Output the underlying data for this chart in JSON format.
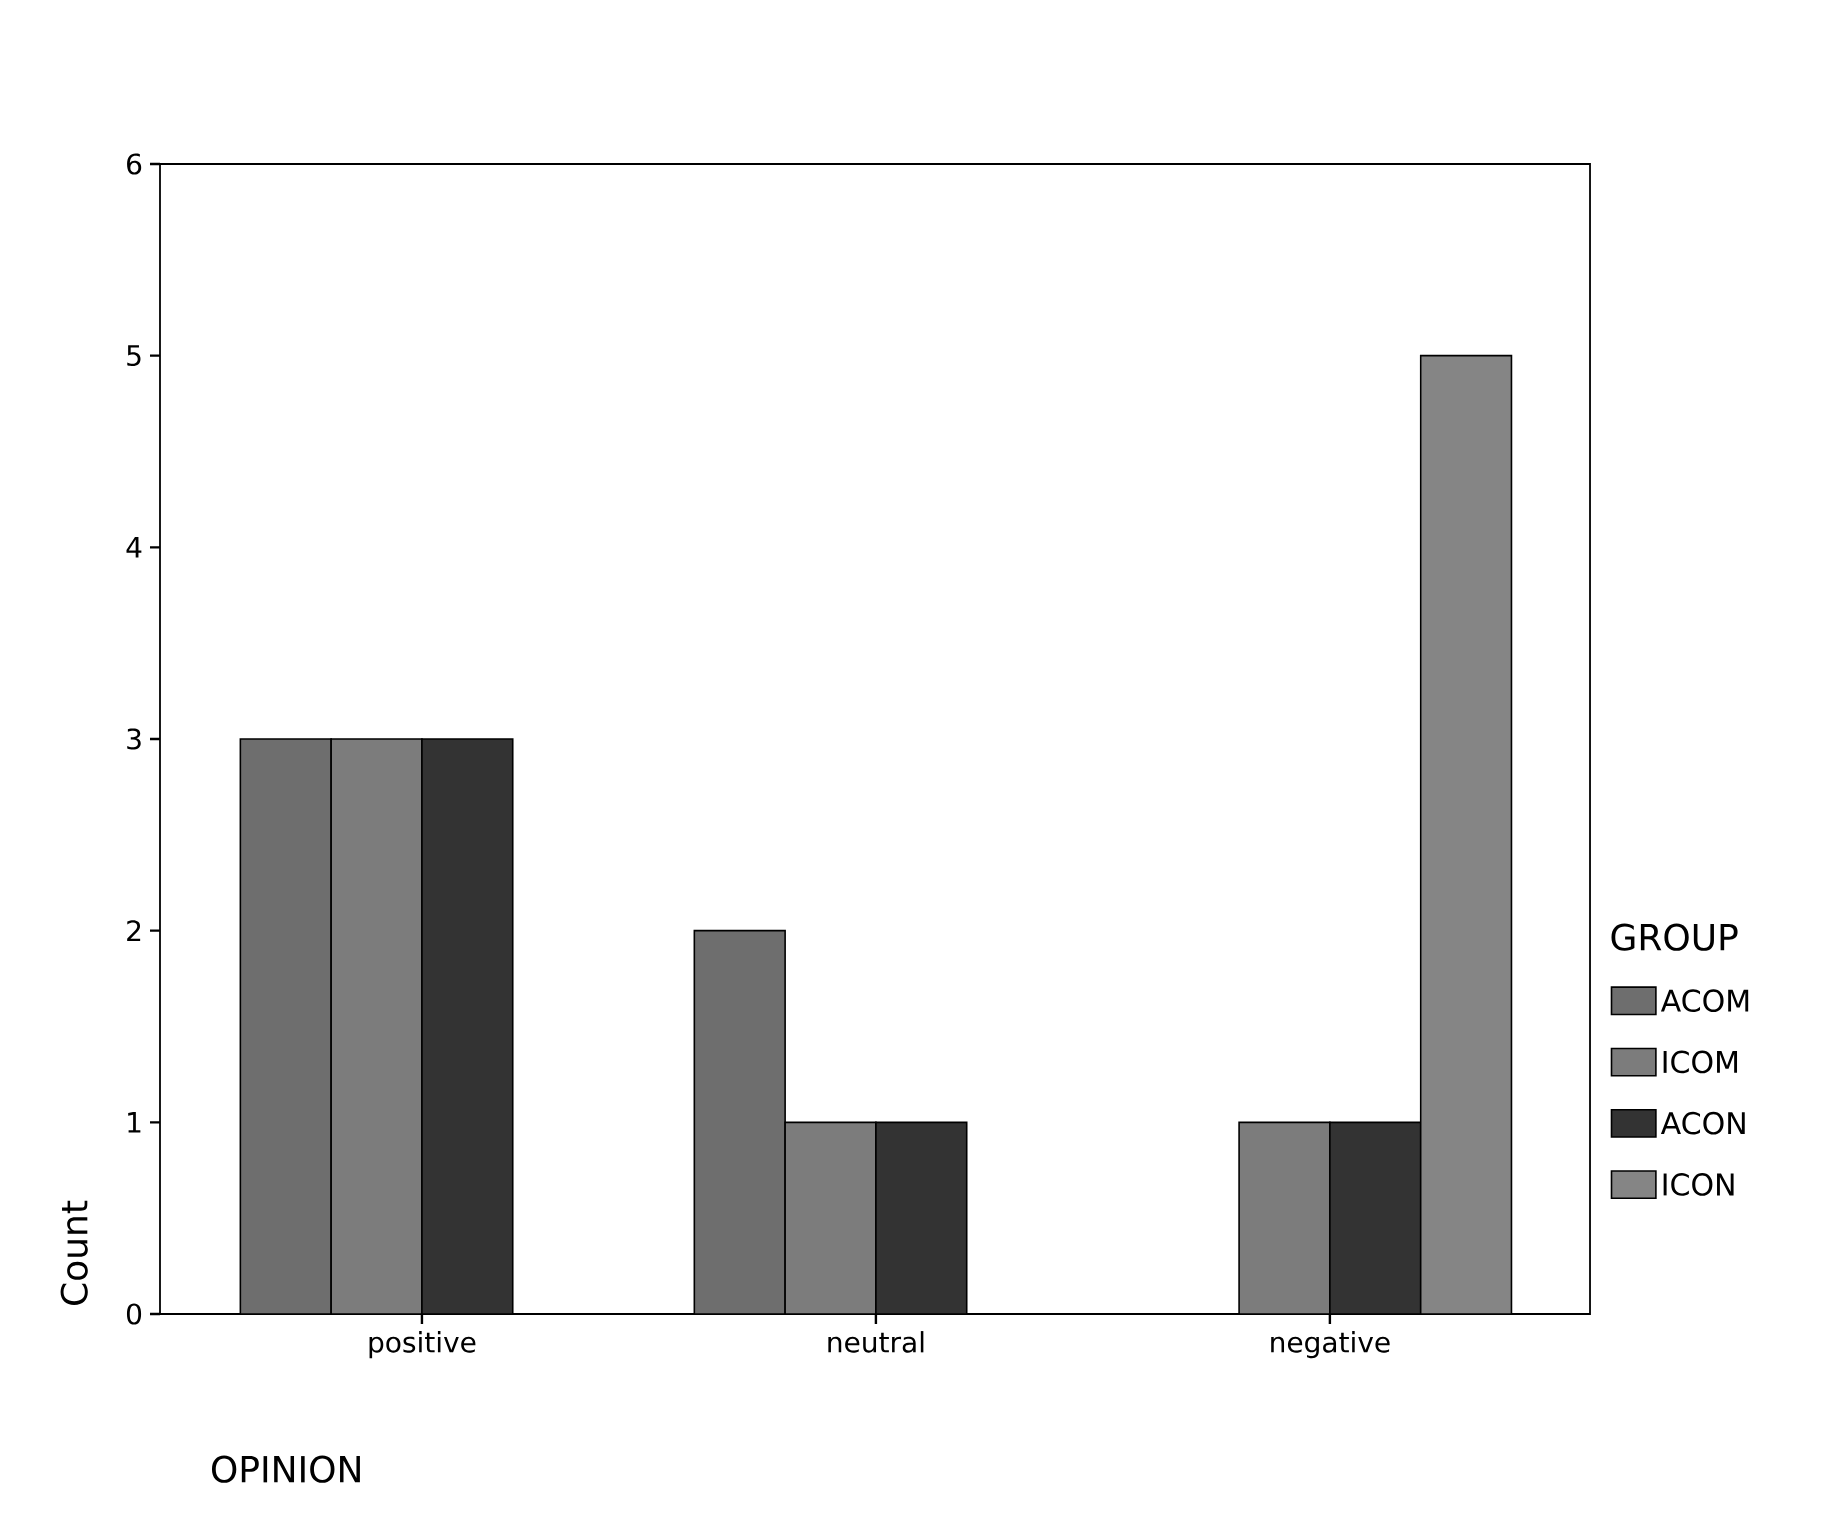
{
  "chart_data": {
    "type": "bar",
    "xlabel": "OPINION",
    "ylabel": "Count",
    "legend_title": "GROUP",
    "legend": "right",
    "grid": false,
    "categories": [
      "positive",
      "neutral",
      "negative"
    ],
    "ylim": [
      0,
      6
    ],
    "yticks": [
      0,
      1,
      2,
      3,
      4,
      5,
      6
    ],
    "series": [
      {
        "name": "ACOM",
        "color": "#6e6e6e",
        "values": [
          3,
          2,
          null
        ]
      },
      {
        "name": "ICOM",
        "color": "#7c7c7c",
        "values": [
          3,
          1,
          1
        ]
      },
      {
        "name": "ACON",
        "color": "#333333",
        "values": [
          3,
          1,
          1
        ]
      },
      {
        "name": "ICON",
        "color": "#858585",
        "values": [
          null,
          null,
          5
        ]
      }
    ]
  }
}
